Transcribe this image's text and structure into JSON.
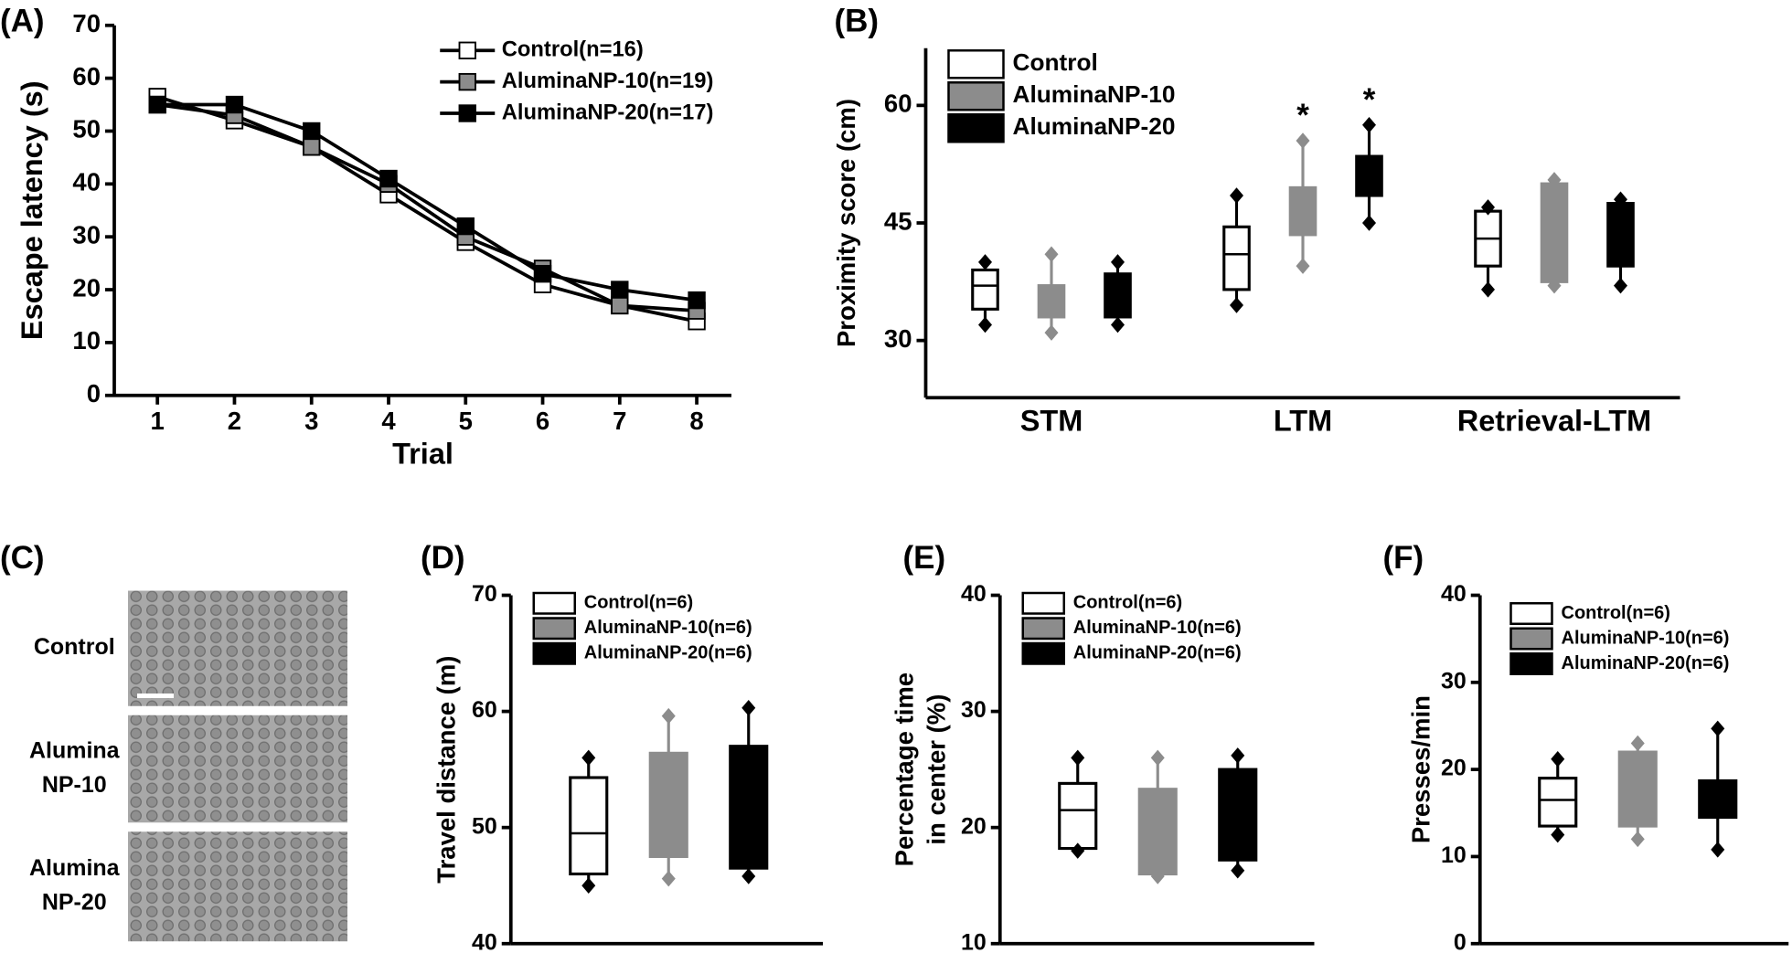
{
  "chart_data": [
    {
      "type": "line",
      "panel_label": "(A)",
      "x_label": "Trial",
      "y_label": "Escape latency (s)",
      "x": [
        1,
        2,
        3,
        4,
        5,
        6,
        7,
        8
      ],
      "xlim": [
        0.44,
        8.45
      ],
      "xticks": [
        1,
        2,
        3,
        4,
        5,
        6,
        7,
        8
      ],
      "ylim": [
        0,
        70
      ],
      "yticks": [
        0,
        10,
        20,
        30,
        40,
        50,
        60,
        70
      ],
      "legend": "upper right",
      "line_color": "#000000",
      "series": [
        {
          "name": "Control(n=16)",
          "color": "#ffffff",
          "values": [
            56.5,
            52,
            47,
            38,
            29,
            21,
            17,
            14
          ]
        },
        {
          "name": "AluminaNP-10(n=19)",
          "color": "#8c8c8c",
          "values": [
            55,
            53,
            47,
            40,
            30,
            24,
            17,
            16
          ]
        },
        {
          "name": "AluminaNP-20(n=17)",
          "color": "#000000",
          "values": [
            55,
            55,
            50,
            41,
            32,
            23,
            20,
            18
          ]
        }
      ]
    },
    {
      "type": "box",
      "panel_label": "(B)",
      "y_label": "Proximity score (cm)",
      "categories": [
        "STM",
        "LTM",
        "Retrieval-LTM"
      ],
      "ylim": [
        22.7,
        67.3
      ],
      "yticks": [
        30,
        45,
        60
      ],
      "legend": "upper left",
      "series": [
        {
          "name": "Control",
          "color": "#ffffff",
          "edgecolor": "#000000",
          "min": [
            32,
            34.5,
            36.5
          ],
          "q1": [
            34,
            36.5,
            39.5
          ],
          "median": [
            37,
            41,
            43
          ],
          "q3": [
            39,
            44.5,
            46.5
          ],
          "max": [
            40,
            48.5,
            47
          ],
          "significance": [
            null,
            null,
            null
          ]
        },
        {
          "name": "AluminaNP-10",
          "color": "#8c8c8c",
          "edgecolor": "#8c8c8c",
          "min": [
            31,
            39.5,
            37
          ],
          "q1": [
            33,
            43.5,
            37.5
          ],
          "median": [
            35,
            47,
            44
          ],
          "q3": [
            37,
            49.5,
            50
          ],
          "max": [
            41,
            55.5,
            50.5
          ],
          "significance": [
            null,
            "*",
            null
          ]
        },
        {
          "name": "AluminaNP-20",
          "color": "#000000",
          "edgecolor": "#000000",
          "min": [
            32,
            45,
            37
          ],
          "q1": [
            33,
            48.5,
            39.5
          ],
          "median": [
            35,
            50.5,
            44
          ],
          "q3": [
            38.5,
            53.5,
            47.5
          ],
          "max": [
            40,
            57.5,
            48
          ],
          "significance": [
            null,
            "*",
            null
          ]
        }
      ]
    },
    {
      "type": "image",
      "panel_label": "(C)",
      "rows": [
        [
          "Control"
        ],
        [
          "Alumina",
          "NP-10"
        ],
        [
          "Alumina",
          "NP-20"
        ]
      ]
    },
    {
      "type": "box",
      "panel_label": "(D)",
      "y_label": [
        "Travel distance (m)"
      ],
      "ylim": [
        40,
        70
      ],
      "yticks": [
        40,
        50,
        60,
        70
      ],
      "legend": "upper left",
      "series": [
        {
          "name": "Control(n=6)",
          "color": "#ffffff",
          "edgecolor": "#000000",
          "min": 45,
          "q1": 46,
          "median": 49.5,
          "q3": 54.3,
          "max": 56
        },
        {
          "name": "AluminaNP-10(n=6)",
          "color": "#8c8c8c",
          "edgecolor": "#8c8c8c",
          "min": 45.6,
          "q1": 47.5,
          "median": 52,
          "q3": 56.4,
          "max": 59.6
        },
        {
          "name": "AluminaNP-20(n=6)",
          "color": "#000000",
          "edgecolor": "#000000",
          "min": 45.8,
          "q1": 46.5,
          "median": 51,
          "q3": 57,
          "max": 60.3
        }
      ]
    },
    {
      "type": "box",
      "panel_label": "(E)",
      "y_label": [
        "Percentage time",
        "in center (%)"
      ],
      "ylim": [
        10,
        40
      ],
      "yticks": [
        10,
        20,
        30,
        40
      ],
      "legend": "upper left",
      "series": [
        {
          "name": "Control(n=6)",
          "color": "#ffffff",
          "edgecolor": "#000000",
          "min": 18,
          "q1": 18.2,
          "median": 21.5,
          "q3": 23.8,
          "max": 26
        },
        {
          "name": "AluminaNP-10(n=6)",
          "color": "#8c8c8c",
          "edgecolor": "#8c8c8c",
          "min": 15.8,
          "q1": 16,
          "median": 20,
          "q3": 23.3,
          "max": 26
        },
        {
          "name": "AluminaNP-20(n=6)",
          "color": "#000000",
          "edgecolor": "#000000",
          "min": 16.3,
          "q1": 17.2,
          "median": 20,
          "q3": 25,
          "max": 26.2
        }
      ]
    },
    {
      "type": "box",
      "panel_label": "(F)",
      "y_label": [
        "Presses/min"
      ],
      "ylim": [
        0,
        40
      ],
      "yticks": [
        0,
        10,
        20,
        30,
        40
      ],
      "legend": "upper left",
      "series": [
        {
          "name": "Control(n=6)",
          "color": "#ffffff",
          "edgecolor": "#000000",
          "min": 12.5,
          "q1": 13.5,
          "median": 16.5,
          "q3": 19,
          "max": 21.2
        },
        {
          "name": "AluminaNP-10(n=6)",
          "color": "#8c8c8c",
          "edgecolor": "#8c8c8c",
          "min": 12,
          "q1": 13.5,
          "median": 17,
          "q3": 22,
          "max": 23
        },
        {
          "name": "AluminaNP-20(n=6)",
          "color": "#000000",
          "edgecolor": "#000000",
          "min": 10.8,
          "q1": 14.5,
          "median": 16,
          "q3": 18.7,
          "max": 24.7
        }
      ]
    }
  ]
}
